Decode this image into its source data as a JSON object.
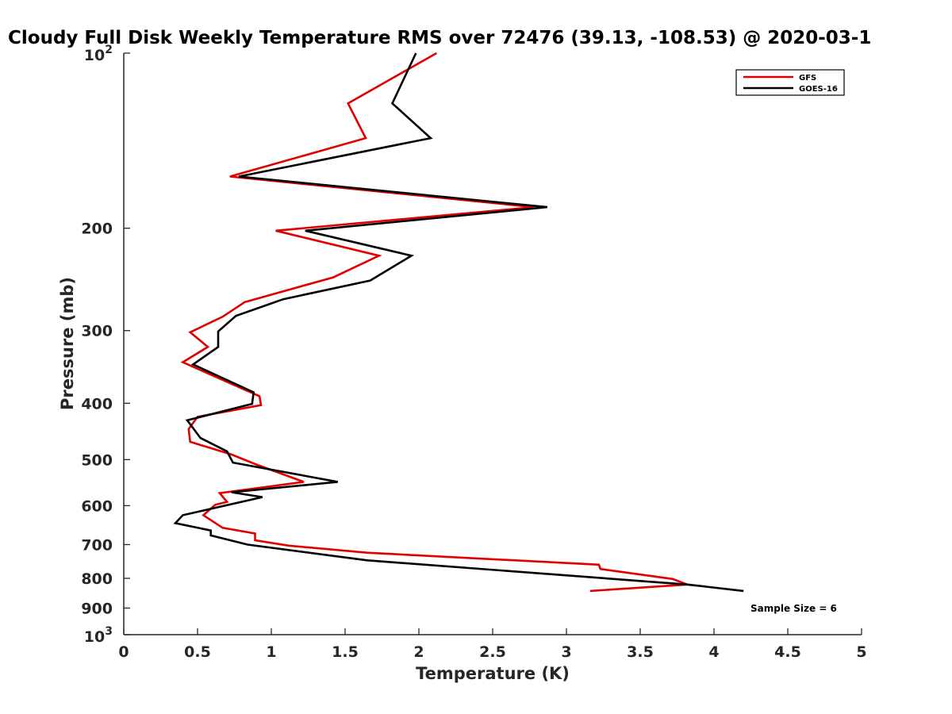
{
  "chart_data": {
    "type": "line",
    "title": "Cloudy Full Disk Weekly Temperature RMS over 72476 (39.13, -108.53) @ 2020-03-1",
    "xlabel": "Temperature (K)",
    "ylabel": "Pressure (mb)",
    "xlim": [
      0,
      5
    ],
    "ylim": [
      100,
      1000
    ],
    "y_scale": "log",
    "y_reversed": true,
    "grid": false,
    "legend_position": "top-right",
    "x_ticks": [
      "0",
      "0.5",
      "1",
      "1.5",
      "2",
      "2.5",
      "3",
      "3.5",
      "4",
      "4.5",
      "5"
    ],
    "y_ticks": [
      {
        "value": 100,
        "base": "10",
        "exp": "2"
      },
      {
        "value": 200,
        "label": "200"
      },
      {
        "value": 300,
        "label": "300"
      },
      {
        "value": 400,
        "label": "400"
      },
      {
        "value": 500,
        "label": "500"
      },
      {
        "value": 600,
        "label": "600"
      },
      {
        "value": 700,
        "label": "700"
      },
      {
        "value": 800,
        "label": "800"
      },
      {
        "value": 900,
        "label": "900"
      },
      {
        "value": 1000,
        "base": "10",
        "exp": "3"
      }
    ],
    "annotation": "Sample Size = 6",
    "series": [
      {
        "name": "GFS",
        "color": "#e00000",
        "points": [
          {
            "x": 2.12,
            "y": 100
          },
          {
            "x": 1.52,
            "y": 122
          },
          {
            "x": 1.64,
            "y": 140
          },
          {
            "x": 0.72,
            "y": 163
          },
          {
            "x": 2.78,
            "y": 184
          },
          {
            "x": 1.03,
            "y": 202
          },
          {
            "x": 1.73,
            "y": 223
          },
          {
            "x": 1.42,
            "y": 243
          },
          {
            "x": 0.82,
            "y": 268
          },
          {
            "x": 0.67,
            "y": 284
          },
          {
            "x": 0.45,
            "y": 302
          },
          {
            "x": 0.57,
            "y": 320
          },
          {
            "x": 0.4,
            "y": 340
          },
          {
            "x": 0.92,
            "y": 389
          },
          {
            "x": 0.93,
            "y": 403
          },
          {
            "x": 0.5,
            "y": 422
          },
          {
            "x": 0.44,
            "y": 443
          },
          {
            "x": 0.45,
            "y": 466
          },
          {
            "x": 0.73,
            "y": 490
          },
          {
            "x": 0.9,
            "y": 510
          },
          {
            "x": 1.22,
            "y": 546
          },
          {
            "x": 0.65,
            "y": 571
          },
          {
            "x": 0.7,
            "y": 591
          },
          {
            "x": 0.62,
            "y": 598
          },
          {
            "x": 0.54,
            "y": 623
          },
          {
            "x": 0.67,
            "y": 655
          },
          {
            "x": 0.89,
            "y": 670
          },
          {
            "x": 0.89,
            "y": 688
          },
          {
            "x": 1.12,
            "y": 703
          },
          {
            "x": 1.65,
            "y": 723
          },
          {
            "x": 3.22,
            "y": 758
          },
          {
            "x": 3.23,
            "y": 771
          },
          {
            "x": 3.72,
            "y": 802
          },
          {
            "x": 3.82,
            "y": 820
          },
          {
            "x": 3.16,
            "y": 841
          }
        ]
      },
      {
        "name": "GOES-16",
        "color": "#000000",
        "points": [
          {
            "x": 1.98,
            "y": 100
          },
          {
            "x": 1.82,
            "y": 122
          },
          {
            "x": 2.08,
            "y": 140
          },
          {
            "x": 0.78,
            "y": 163
          },
          {
            "x": 2.87,
            "y": 184
          },
          {
            "x": 1.23,
            "y": 202
          },
          {
            "x": 1.95,
            "y": 223
          },
          {
            "x": 1.67,
            "y": 246
          },
          {
            "x": 1.08,
            "y": 265
          },
          {
            "x": 0.76,
            "y": 283
          },
          {
            "x": 0.64,
            "y": 301
          },
          {
            "x": 0.64,
            "y": 320
          },
          {
            "x": 0.47,
            "y": 343
          },
          {
            "x": 0.88,
            "y": 383
          },
          {
            "x": 0.87,
            "y": 401
          },
          {
            "x": 0.43,
            "y": 428
          },
          {
            "x": 0.52,
            "y": 459
          },
          {
            "x": 0.7,
            "y": 484
          },
          {
            "x": 0.74,
            "y": 506
          },
          {
            "x": 1.45,
            "y": 546
          },
          {
            "x": 0.73,
            "y": 569
          },
          {
            "x": 0.94,
            "y": 580
          },
          {
            "x": 0.4,
            "y": 623
          },
          {
            "x": 0.35,
            "y": 643
          },
          {
            "x": 0.59,
            "y": 662
          },
          {
            "x": 0.59,
            "y": 675
          },
          {
            "x": 0.84,
            "y": 700
          },
          {
            "x": 1.65,
            "y": 745
          },
          {
            "x": 3.82,
            "y": 820
          },
          {
            "x": 4.2,
            "y": 841
          }
        ]
      }
    ]
  }
}
